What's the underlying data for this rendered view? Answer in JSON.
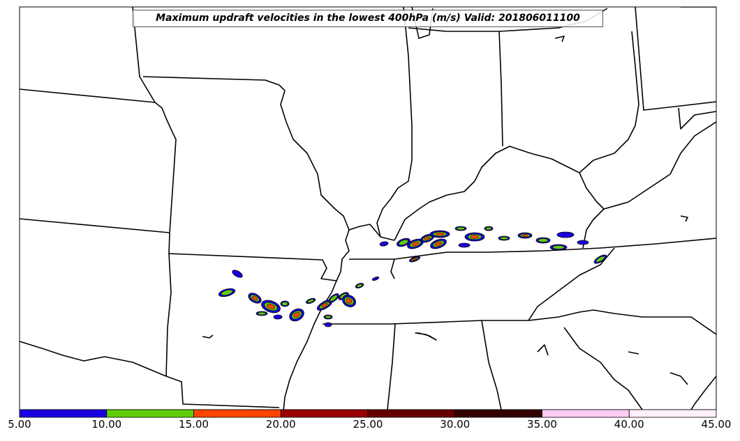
{
  "title": "Maximum updraft velocities in the lowest 400hPa (m/s) Valid: 201806011100",
  "colorbar": {
    "ticks": [
      "5.00",
      "10.00",
      "15.00",
      "20.00",
      "25.00",
      "30.00",
      "35.00",
      "40.00",
      "45.00"
    ],
    "colors": [
      "#1a00e0",
      "#5fcd0a",
      "#ff4500",
      "#990000",
      "#660000",
      "#330000",
      "#ffccf2",
      "#fff0fb"
    ]
  },
  "contour_fill": {
    "low": "#1a00e0",
    "mid": "#5fcd0a",
    "high": "#ff4500"
  }
}
